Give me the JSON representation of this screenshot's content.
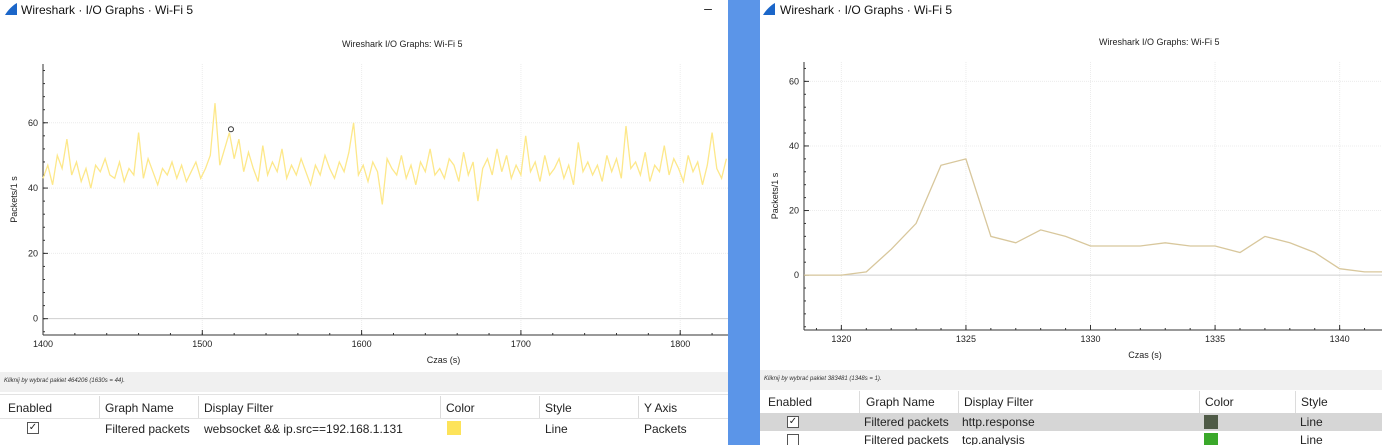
{
  "left": {
    "window_title": "Wireshark · I/O Graphs · Wi-Fi 5",
    "minimize": "–",
    "graph_title": "Wireshark I/O Graphs: Wi-Fi 5",
    "status": "Kliknij by wybrać pakiet 464206 (1630s = 44).",
    "table_headers": [
      "Enabled",
      "Graph Name",
      "Display Filter",
      "Color",
      "Style",
      "Y Axis"
    ],
    "rows": [
      {
        "enabled": "✓",
        "name": "Filtered packets",
        "filter": "websocket && ip.src==192.168.1.131",
        "color": "#fde35a",
        "style": "Line",
        "yaxis": "Packets"
      }
    ]
  },
  "right": {
    "window_title": "Wireshark · I/O Graphs · Wi-Fi 5",
    "graph_title": "Wireshark I/O Graphs: Wi-Fi 5",
    "status": "Kliknij by wybrać pakiet 383481 (1348s = 1).",
    "table_headers": [
      "Enabled",
      "Graph Name",
      "Display Filter",
      "Color",
      "Style"
    ],
    "rows": [
      {
        "enabled": "✓",
        "name": "Filtered packets",
        "filter": "http.response",
        "color": "#4f5b47",
        "style": "Line"
      },
      {
        "enabled": "",
        "name": "Filtered packets",
        "filter": "tcp.analysis",
        "color": "#3aa82a",
        "style": "Line"
      }
    ]
  },
  "chart_data": [
    {
      "type": "line",
      "xlabel": "Czas (s)",
      "ylabel": "Packets/1 s",
      "xlim": [
        1400,
        1830
      ],
      "ylim": [
        -5,
        78
      ],
      "xticks": [
        "1400",
        "1500",
        "1600",
        "1700",
        "1800"
      ],
      "yticks": [
        "0",
        "20",
        "40",
        "60"
      ],
      "grid": true,
      "series": [
        {
          "color": "#fde88a",
          "x": [
            1400,
            1403,
            1406,
            1409,
            1412,
            1415,
            1418,
            1421,
            1424,
            1427,
            1430,
            1433,
            1436,
            1439,
            1442,
            1445,
            1448,
            1451,
            1454,
            1457,
            1460,
            1463,
            1466,
            1469,
            1472,
            1475,
            1478,
            1481,
            1484,
            1487,
            1490,
            1493,
            1496,
            1499,
            1502,
            1505,
            1508,
            1511,
            1514,
            1517,
            1520,
            1523,
            1526,
            1529,
            1532,
            1535,
            1538,
            1541,
            1544,
            1547,
            1550,
            1553,
            1556,
            1559,
            1562,
            1565,
            1568,
            1571,
            1574,
            1577,
            1580,
            1583,
            1586,
            1589,
            1592,
            1595,
            1598,
            1601,
            1604,
            1607,
            1610,
            1613,
            1616,
            1619,
            1622,
            1625,
            1628,
            1631,
            1634,
            1637,
            1640,
            1643,
            1646,
            1649,
            1652,
            1655,
            1658,
            1661,
            1664,
            1667,
            1670,
            1673,
            1676,
            1679,
            1682,
            1685,
            1688,
            1691,
            1694,
            1697,
            1700,
            1703,
            1706,
            1709,
            1712,
            1715,
            1718,
            1721,
            1724,
            1727,
            1730,
            1733,
            1736,
            1739,
            1742,
            1745,
            1748,
            1751,
            1754,
            1757,
            1760,
            1763,
            1766,
            1769,
            1772,
            1775,
            1778,
            1781,
            1784,
            1787,
            1790,
            1793,
            1796,
            1799,
            1802,
            1805,
            1808,
            1811,
            1814,
            1817,
            1820,
            1823,
            1826,
            1829
          ],
          "values": [
            43,
            47,
            41,
            50,
            46,
            55,
            44,
            48,
            42,
            46,
            40,
            47,
            45,
            49,
            44,
            43,
            48,
            42,
            46,
            44,
            57,
            43,
            49,
            45,
            41,
            46,
            44,
            48,
            43,
            47,
            42,
            45,
            48,
            43,
            46,
            50,
            66,
            47,
            52,
            57,
            49,
            55,
            45,
            51,
            46,
            42,
            53,
            44,
            48,
            45,
            52,
            43,
            47,
            44,
            49,
            45,
            41,
            47,
            44,
            50,
            46,
            43,
            48,
            45,
            51,
            60,
            44,
            47,
            42,
            48,
            45,
            35,
            49,
            46,
            44,
            50,
            43,
            47,
            41,
            48,
            45,
            52,
            44,
            46,
            43,
            49,
            47,
            42,
            51,
            44,
            48,
            36,
            46,
            49,
            44,
            52,
            45,
            50,
            43,
            47,
            44,
            56,
            45,
            48,
            42,
            50,
            44,
            46,
            49,
            43,
            47,
            41,
            54,
            45,
            48,
            44,
            47,
            42,
            50,
            45,
            49,
            43,
            59,
            46,
            48,
            44,
            51,
            42,
            47,
            45,
            53,
            44,
            49,
            46,
            42,
            50,
            45,
            48,
            41,
            47,
            57,
            46,
            43,
            49
          ]
        }
      ],
      "marker": {
        "x": 1518,
        "y": 58
      }
    },
    {
      "type": "line",
      "xlabel": "Czas (s)",
      "ylabel": "Packets/1 s",
      "xlim": [
        1318.5,
        1341.7
      ],
      "ylim": [
        -17,
        66
      ],
      "xticks": [
        "1320",
        "1325",
        "1330",
        "1335",
        "1340"
      ],
      "yticks": [
        "0",
        "20",
        "40",
        "60"
      ],
      "grid": true,
      "series": [
        {
          "color": "#d8c79c",
          "x": [
            1318.5,
            1320,
            1321,
            1322,
            1323,
            1324,
            1325,
            1326,
            1327,
            1328,
            1329,
            1330,
            1331,
            1332,
            1333,
            1334,
            1335,
            1336,
            1337,
            1338,
            1339,
            1340,
            1341,
            1341.7
          ],
          "values": [
            0,
            0,
            1,
            8,
            16,
            34,
            36,
            12,
            10,
            14,
            12,
            9,
            9,
            9,
            10,
            9,
            9,
            7,
            12,
            10,
            7,
            2,
            1,
            1
          ]
        }
      ]
    }
  ]
}
